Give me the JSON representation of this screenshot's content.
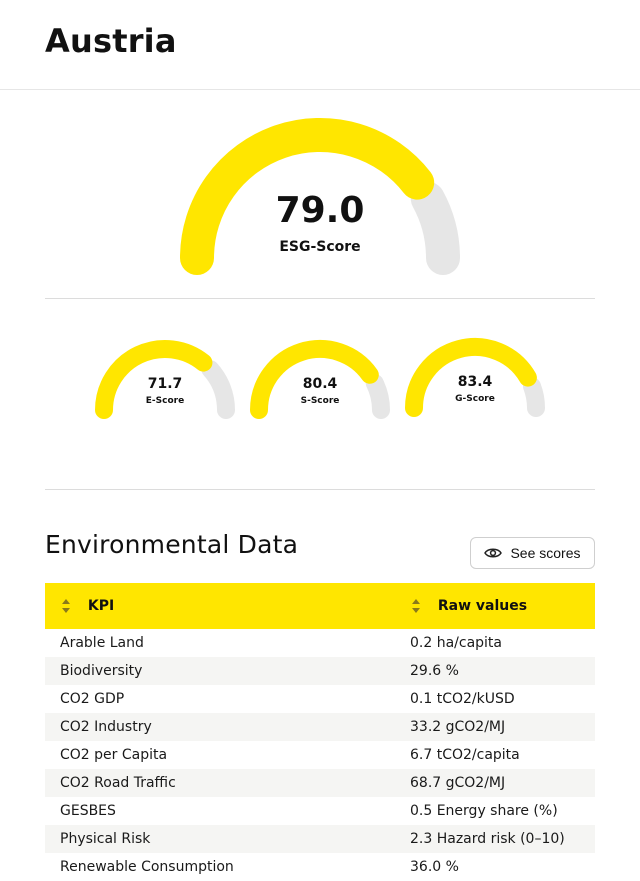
{
  "country": "Austria",
  "colors": {
    "accent": "#ffe600",
    "track": "#e6e6e6"
  },
  "esg": {
    "value": "79.0",
    "label": "ESG-Score",
    "fraction": 0.79
  },
  "subscores": [
    {
      "value": "71.7",
      "label": "E-Score",
      "fraction": 0.717
    },
    {
      "value": "80.4",
      "label": "S-Score",
      "fraction": 0.804
    },
    {
      "value": "83.4",
      "label": "G-Score",
      "fraction": 0.834
    }
  ],
  "section": {
    "title": "Environmental Data",
    "see_scores_label": "See scores",
    "see_scores_icon": "eye-icon"
  },
  "table": {
    "headers": {
      "kpi": "KPI",
      "raw": "Raw values",
      "sort_icon": "sort-icon"
    },
    "rows": [
      {
        "kpi": "Arable Land",
        "raw": "0.2 ha/capita"
      },
      {
        "kpi": "Biodiversity",
        "raw": "29.6 %"
      },
      {
        "kpi": "CO2 GDP",
        "raw": "0.1 tCO2/kUSD"
      },
      {
        "kpi": "CO2 Industry",
        "raw": "33.2 gCO2/MJ"
      },
      {
        "kpi": "CO2 per Capita",
        "raw": "6.7 tCO2/capita"
      },
      {
        "kpi": "CO2 Road Traffic",
        "raw": "68.7 gCO2/MJ"
      },
      {
        "kpi": "GESBES",
        "raw": "0.5 Energy share (%)"
      },
      {
        "kpi": "Physical Risk",
        "raw": "2.3 Hazard risk (0–10)"
      },
      {
        "kpi": "Renewable Consumption",
        "raw": "36.0 %"
      }
    ]
  }
}
